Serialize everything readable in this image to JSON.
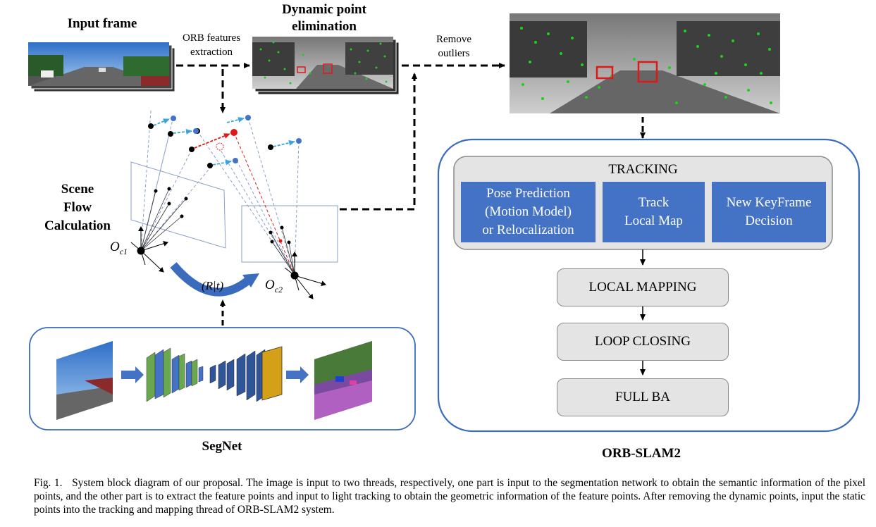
{
  "titles": {
    "input_frame": "Input frame",
    "dynamic_point_line1": "Dynamic point",
    "dynamic_point_line2": "elimination",
    "scene_flow_line1": "Scene",
    "scene_flow_line2": "Flow",
    "scene_flow_line3": "Calculation",
    "segnet": "SegNet",
    "orbslam2": "ORB-SLAM2"
  },
  "arrow_labels": {
    "orb_line1": "ORB features",
    "orb_line2": "extraction",
    "remove_line1": "Remove",
    "remove_line2": "outliers"
  },
  "math_labels": {
    "oc1": "O",
    "oc1_sub": "c1",
    "oc2": "O",
    "oc2_sub": "c2",
    "transform": "(R|t)"
  },
  "tracking": {
    "title": "TRACKING",
    "box1_line1": "Pose Prediction",
    "box1_line2": "(Motion Model)",
    "box1_line3": "or Relocalization",
    "box2_line1": "Track",
    "box2_line2": "Local Map",
    "box3_line1": "New KeyFrame",
    "box3_line2": "Decision"
  },
  "modules": {
    "local_mapping": "LOCAL MAPPING",
    "loop_closing": "LOOP CLOSING",
    "full_ba": "FULL BA"
  },
  "caption": {
    "prefix": "Fig. 1.",
    "text": "System block diagram of our proposal. The image is input to two threads, respectively, one part is input to the segmentation network to obtain the semantic information of the pixel points, and the other part is to extract the feature points and input to light tracking to obtain the geometric information of the feature points. After removing the dynamic points, input the static points into the tracking and mapping thread of ORB-SLAM2 system."
  },
  "colors": {
    "blue_box": "#4472c4",
    "frame_border": "#4472c4",
    "grey_box": "#e4e4e4",
    "feature_green": "#22cc22",
    "dynamic_red": "#e01818",
    "flow_blue": "#3da3e0"
  }
}
